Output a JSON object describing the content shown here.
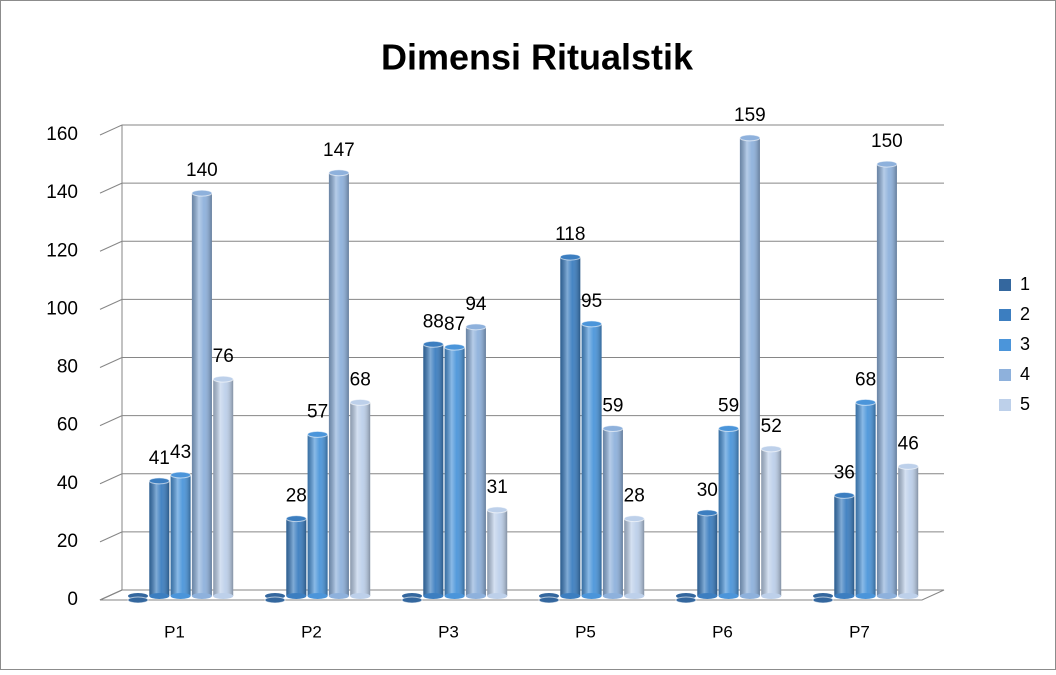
{
  "chart_data": {
    "type": "bar3d",
    "title": "Dimensi Ritualstik",
    "categories": [
      "P1",
      "P2",
      "P3",
      "P5",
      "P6",
      "P7"
    ],
    "series": [
      {
        "name": "1",
        "color": "#34679e",
        "values": [
          0,
          0,
          0,
          0,
          0,
          0
        ],
        "value_labels": [
          null,
          null,
          null,
          null,
          null,
          null
        ]
      },
      {
        "name": "2",
        "color": "#3c7ec0",
        "values": [
          41,
          28,
          88,
          118,
          30,
          36
        ]
      },
      {
        "name": "3",
        "color": "#4b95da",
        "values": [
          43,
          57,
          87,
          95,
          59,
          68
        ]
      },
      {
        "name": "4",
        "color": "#8eb1dc",
        "values": [
          140,
          147,
          94,
          59,
          159,
          150
        ]
      },
      {
        "name": "5",
        "color": "#bdd0ea",
        "values": [
          76,
          68,
          31,
          28,
          52,
          46
        ]
      }
    ],
    "ylim": [
      0,
      160
    ],
    "yticks": [
      0,
      20,
      40,
      60,
      80,
      100,
      120,
      140,
      160
    ],
    "grid": true,
    "legend": "right"
  }
}
